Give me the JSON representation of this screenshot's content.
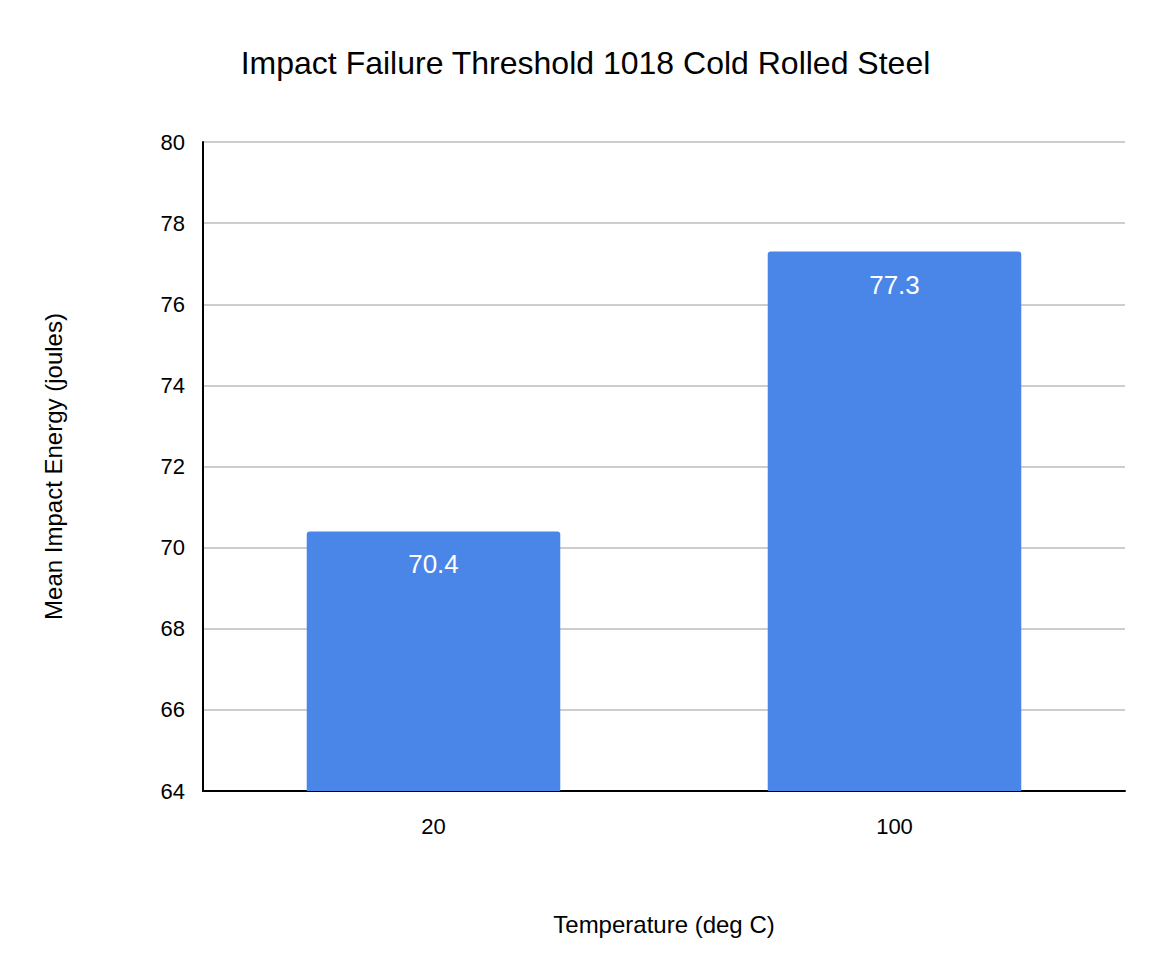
{
  "chart_data": {
    "type": "bar",
    "title": "Impact Failure Threshold 1018 Cold Rolled Steel",
    "x_label": "Temperature (deg C)",
    "y_label": "Mean Impact Energy (joules)",
    "categories": [
      "20",
      "100"
    ],
    "values": [
      70.4,
      77.3
    ],
    "color": "#4a86e8",
    "ylim": [
      64,
      80
    ],
    "yticks": [
      64,
      66,
      68,
      70,
      72,
      74,
      76,
      78,
      80
    ],
    "grid": true,
    "data_labels": true
  }
}
